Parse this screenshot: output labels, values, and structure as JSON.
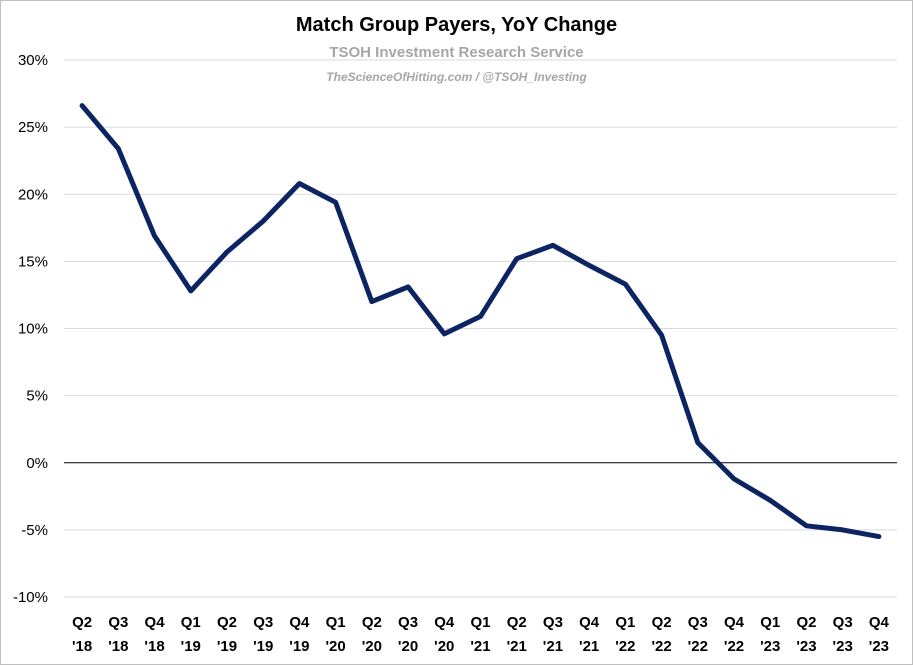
{
  "chart_data": {
    "type": "line",
    "title": "Match Group Payers, YoY Change",
    "subtitle": "TSOH Investment Research Service",
    "credit": "TheScienceOfHitting.com / @TSOH_Investing",
    "xlabel": "",
    "ylabel": "",
    "ylim": [
      -10,
      30
    ],
    "yticks": [
      "30%",
      "25%",
      "20%",
      "15%",
      "10%",
      "5%",
      "0%",
      "-5%",
      "-10%"
    ],
    "ytick_values": [
      30,
      25,
      20,
      15,
      10,
      5,
      0,
      -5,
      -10
    ],
    "grid": true,
    "legend": "none",
    "categories": [
      [
        "Q2",
        "'18"
      ],
      [
        "Q3",
        "'18"
      ],
      [
        "Q4",
        "'18"
      ],
      [
        "Q1",
        "'19"
      ],
      [
        "Q2",
        "'19"
      ],
      [
        "Q3",
        "'19"
      ],
      [
        "Q4",
        "'19"
      ],
      [
        "Q1",
        "'20"
      ],
      [
        "Q2",
        "'20"
      ],
      [
        "Q3",
        "'20"
      ],
      [
        "Q4",
        "'20"
      ],
      [
        "Q1",
        "'21"
      ],
      [
        "Q2",
        "'21"
      ],
      [
        "Q3",
        "'21"
      ],
      [
        "Q4",
        "'21"
      ],
      [
        "Q1",
        "'22"
      ],
      [
        "Q2",
        "'22"
      ],
      [
        "Q3",
        "'22"
      ],
      [
        "Q4",
        "'22"
      ],
      [
        "Q1",
        "'23"
      ],
      [
        "Q2",
        "'23"
      ],
      [
        "Q3",
        "'23"
      ],
      [
        "Q4",
        "'23"
      ]
    ],
    "series": [
      {
        "values": [
          26.6,
          23.4,
          16.9,
          12.8,
          15.7,
          18.0,
          20.8,
          19.4,
          12.0,
          13.1,
          9.6,
          10.9,
          15.2,
          16.2,
          14.7,
          13.3,
          9.5,
          1.5,
          -1.2,
          -2.8,
          -4.7,
          -5.0,
          -5.5
        ],
        "color": "#0c2461"
      }
    ],
    "zero_line_color": "#000000",
    "grid_color": "#d9d9d9"
  }
}
